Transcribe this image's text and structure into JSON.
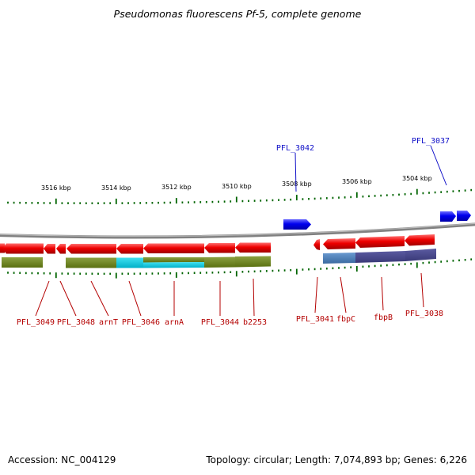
{
  "title": "Pseudomonas fluorescens Pf-5, complete genome",
  "footer": {
    "accession": "Accession: NC_004129",
    "summary": "Topology: circular; Length: 7,074,893 bp; Genes: 6,226"
  },
  "colors": {
    "forward_gene": "#0000ee",
    "reverse_gene": "#ee0000",
    "backbone": "#888888",
    "ticks": "#006400",
    "label_red": "#b40000",
    "label_blue": "#1010c8"
  },
  "scale_labels": [
    "3516 kbp",
    "3514 kbp",
    "3512 kbp",
    "3510 kbp",
    "3508 kbp",
    "3506 kbp",
    "3504 kbp"
  ],
  "forward_labels": [
    "PFL_3042",
    "PFL_3037"
  ],
  "reverse_labels": [
    "PFL_3049",
    "PFL_3048",
    "arnT",
    "PFL_3046",
    "arnA",
    "PFL_3044",
    "b2253",
    "PFL_3041",
    "fbpC",
    "fbpB",
    "PFL_3038"
  ]
}
